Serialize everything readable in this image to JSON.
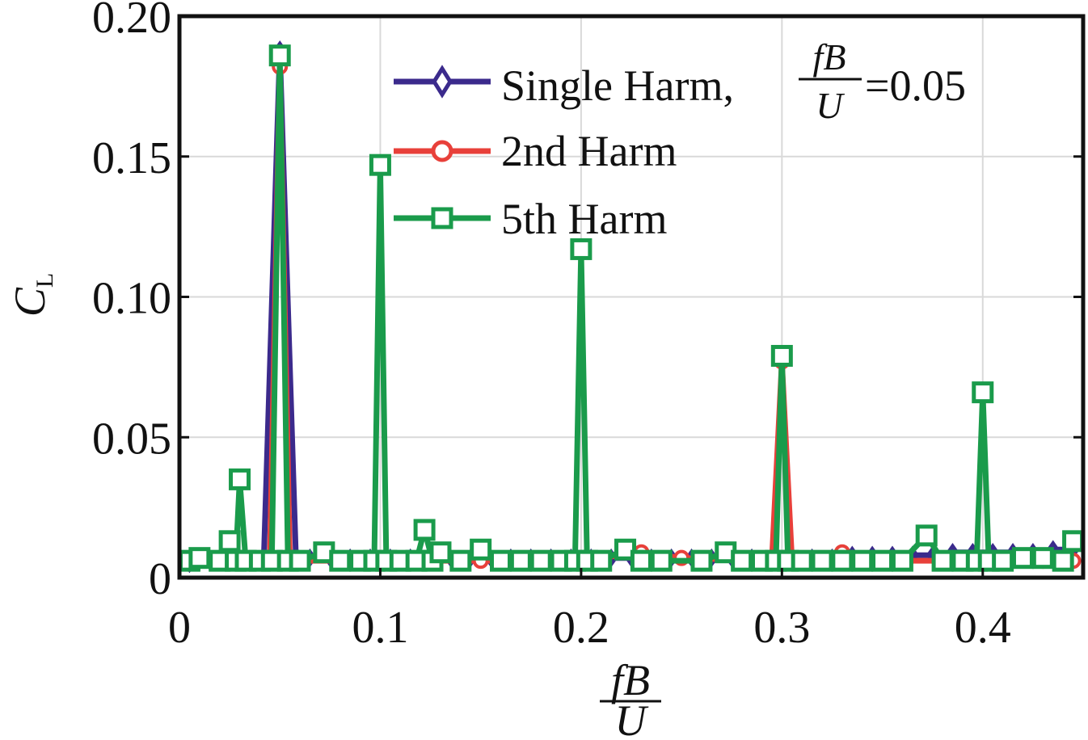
{
  "chart_data": {
    "type": "line",
    "title": "",
    "xlabel": {
      "numerator": "fB",
      "denominator": "U"
    },
    "ylabel": {
      "main": "C",
      "sub": "L"
    },
    "xlim": [
      0,
      0.45
    ],
    "ylim": [
      0,
      0.2
    ],
    "xticks": [
      0,
      0.1,
      0.2,
      0.3,
      0.4
    ],
    "xtick_labels": [
      "0",
      "0.1",
      "0.2",
      "0.3",
      "0.4"
    ],
    "yticks": [
      0,
      0.05,
      0.1,
      0.15,
      0.2
    ],
    "ytick_labels": [
      "0",
      "0.05",
      "0.10",
      "0.15",
      "0.20"
    ],
    "grid": true,
    "legend_position": "top-right",
    "series": [
      {
        "name": "Single Harm,",
        "legend_suffix": "=0.05",
        "legend_frac": {
          "numerator": "fB",
          "denominator": "U"
        },
        "color": "#3b2a8c",
        "marker": "diamond",
        "x": [
          0.005,
          0.015,
          0.025,
          0.035,
          0.042,
          0.05,
          0.058,
          0.065,
          0.075,
          0.085,
          0.095,
          0.105,
          0.115,
          0.125,
          0.135,
          0.145,
          0.155,
          0.165,
          0.175,
          0.185,
          0.195,
          0.205,
          0.215,
          0.225,
          0.235,
          0.245,
          0.255,
          0.265,
          0.275,
          0.285,
          0.295,
          0.305,
          0.315,
          0.325,
          0.335,
          0.345,
          0.355,
          0.365,
          0.375,
          0.385,
          0.395,
          0.405,
          0.415,
          0.425,
          0.435,
          0.445
        ],
        "y": [
          0.005,
          0.006,
          0.006,
          0.006,
          0.006,
          0.188,
          0.007,
          0.007,
          0.007,
          0.007,
          0.007,
          0.007,
          0.007,
          0.007,
          0.007,
          0.007,
          0.007,
          0.007,
          0.007,
          0.007,
          0.007,
          0.007,
          0.007,
          0.007,
          0.007,
          0.007,
          0.007,
          0.007,
          0.007,
          0.007,
          0.007,
          0.007,
          0.007,
          0.007,
          0.008,
          0.008,
          0.008,
          0.008,
          0.008,
          0.009,
          0.009,
          0.009,
          0.009,
          0.009,
          0.01,
          0.01
        ]
      },
      {
        "name": "2nd Harm",
        "color": "#e8403a",
        "marker": "circle",
        "x": [
          0.005,
          0.02,
          0.03,
          0.04,
          0.045,
          0.05,
          0.055,
          0.06,
          0.08,
          0.1,
          0.12,
          0.15,
          0.2,
          0.23,
          0.25,
          0.295,
          0.3,
          0.305,
          0.33,
          0.36,
          0.4,
          0.43,
          0.445
        ],
        "y": [
          0.005,
          0.006,
          0.006,
          0.006,
          0.006,
          0.182,
          0.006,
          0.006,
          0.006,
          0.006,
          0.006,
          0.006,
          0.006,
          0.009,
          0.007,
          0.006,
          0.077,
          0.006,
          0.009,
          0.006,
          0.006,
          0.006,
          0.006
        ]
      },
      {
        "name": "5th Harm",
        "color": "#1a9b4b",
        "marker": "square",
        "x": [
          0.005,
          0.01,
          0.02,
          0.025,
          0.028,
          0.03,
          0.033,
          0.04,
          0.046,
          0.05,
          0.054,
          0.06,
          0.072,
          0.08,
          0.09,
          0.097,
          0.1,
          0.103,
          0.11,
          0.118,
          0.122,
          0.126,
          0.13,
          0.14,
          0.15,
          0.16,
          0.17,
          0.18,
          0.19,
          0.197,
          0.2,
          0.203,
          0.21,
          0.222,
          0.23,
          0.24,
          0.26,
          0.272,
          0.28,
          0.29,
          0.297,
          0.3,
          0.303,
          0.31,
          0.32,
          0.33,
          0.34,
          0.35,
          0.36,
          0.372,
          0.38,
          0.39,
          0.397,
          0.4,
          0.403,
          0.41,
          0.42,
          0.43,
          0.44,
          0.445
        ],
        "y": [
          0.006,
          0.007,
          0.006,
          0.013,
          0.006,
          0.035,
          0.006,
          0.006,
          0.006,
          0.186,
          0.006,
          0.006,
          0.009,
          0.006,
          0.006,
          0.006,
          0.147,
          0.006,
          0.006,
          0.006,
          0.017,
          0.006,
          0.009,
          0.006,
          0.01,
          0.006,
          0.006,
          0.006,
          0.006,
          0.006,
          0.117,
          0.006,
          0.006,
          0.01,
          0.006,
          0.006,
          0.006,
          0.009,
          0.006,
          0.006,
          0.006,
          0.079,
          0.006,
          0.006,
          0.006,
          0.006,
          0.006,
          0.006,
          0.006,
          0.015,
          0.006,
          0.006,
          0.006,
          0.066,
          0.006,
          0.006,
          0.007,
          0.007,
          0.006,
          0.013
        ]
      }
    ]
  }
}
